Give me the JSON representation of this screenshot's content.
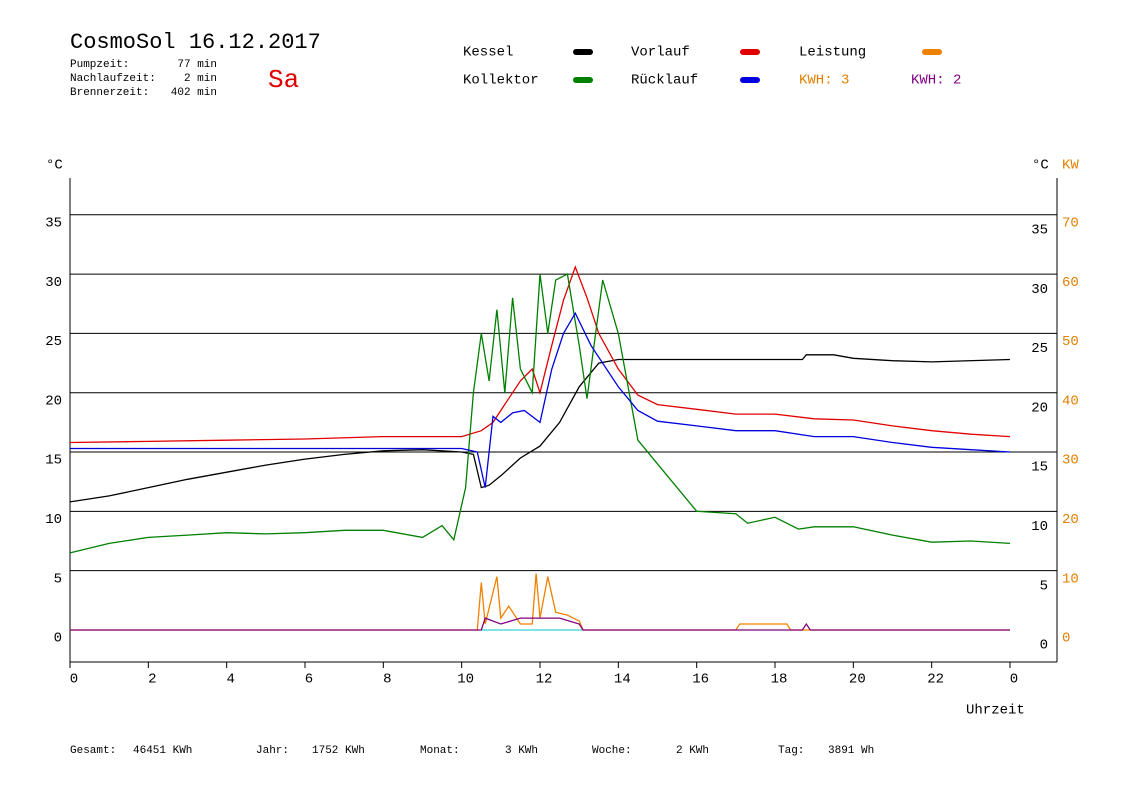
{
  "chart_data": {
    "type": "line",
    "title": "CosmoSol 16.12.2017",
    "day": "Sa",
    "info": [
      [
        "Pumpzeit:",
        "77 min"
      ],
      [
        "Nachlaufzeit:",
        "2 min"
      ],
      [
        "Brennerzeit:",
        "402 min"
      ]
    ],
    "y_label": "°C",
    "y2_label": "°C",
    "y2_unit": "KW",
    "x_label": "Uhrzeit",
    "kwh_labels": [
      {
        "text": "KWH: 3",
        "color": "#e08000"
      },
      {
        "text": "KWH: 2",
        "color": "#800080"
      }
    ],
    "footer": [
      [
        "Gesamt:",
        "46451 KWh"
      ],
      [
        "Jahr:",
        "1752 KWh"
      ],
      [
        "Monat:",
        "3 KWh"
      ],
      [
        "Woche:",
        "2 KWh"
      ],
      [
        "Tag:",
        "3891 Wh"
      ]
    ],
    "xlim": [
      0,
      25.2
    ],
    "xticks": [
      0,
      2,
      4,
      6,
      8,
      10,
      12,
      14,
      16,
      18,
      20,
      22,
      {
        "value": 24,
        "label": "0"
      }
    ],
    "ylim": [
      -2.7,
      38.1
    ],
    "yticks": [
      0,
      5,
      10,
      15,
      20,
      25,
      30,
      35
    ],
    "y2lim": [
      -5.4,
      76.2
    ],
    "y2ticks": [
      0,
      10,
      20,
      30,
      40,
      50,
      60,
      70
    ],
    "grid": true,
    "series": [
      {
        "name": "Kessel",
        "color": "#000000",
        "x": [
          0,
          1,
          2,
          3,
          4,
          5,
          6,
          7,
          8,
          9,
          10,
          10.3,
          10.5,
          10.7,
          11,
          11.5,
          12,
          12.5,
          13,
          13.5,
          14,
          16,
          18,
          18.7,
          18.8,
          19.5,
          20,
          21,
          22,
          24
        ],
        "values": [
          10.8,
          11.3,
          12.0,
          12.7,
          13.3,
          13.9,
          14.4,
          14.8,
          15.1,
          15.2,
          15.0,
          14.8,
          12.0,
          12.2,
          13.0,
          14.5,
          15.5,
          17.5,
          20.5,
          22.5,
          22.8,
          22.8,
          22.8,
          22.8,
          23.2,
          23.2,
          22.9,
          22.7,
          22.6,
          22.8
        ]
      },
      {
        "name": "Vorlauf",
        "color": "#e00000",
        "x": [
          0,
          2,
          4,
          6,
          8,
          10,
          10.5,
          10.8,
          11,
          11.5,
          11.8,
          12,
          12.3,
          12.6,
          12.9,
          13.2,
          13.5,
          14,
          14.5,
          15,
          16,
          17,
          18,
          19,
          20,
          21,
          22,
          23,
          24
        ],
        "values": [
          15.8,
          15.9,
          16.0,
          16.1,
          16.3,
          16.3,
          16.8,
          17.5,
          18.5,
          21,
          22,
          20,
          24,
          27.8,
          30.6,
          28,
          25,
          22,
          19.8,
          19,
          18.6,
          18.2,
          18.2,
          17.8,
          17.7,
          17.2,
          16.8,
          16.5,
          16.3
        ]
      },
      {
        "name": "Leistung",
        "color": "#f08000",
        "axis": "y2",
        "x": [
          0,
          10.4,
          10.5,
          10.6,
          10.9,
          11,
          11.2,
          11.5,
          11.8,
          11.9,
          12.0,
          12.2,
          12.4,
          12.7,
          13,
          13.1,
          17,
          17.1,
          18.3,
          18.4,
          24
        ],
        "values": [
          0,
          0,
          8,
          1,
          9,
          2,
          4,
          1,
          1,
          9.5,
          2,
          9,
          3,
          2.5,
          1.5,
          0,
          0,
          1,
          1,
          0,
          0
        ]
      },
      {
        "name": "Kollektor",
        "color": "#008000",
        "x": [
          0,
          1,
          2,
          3,
          4,
          5,
          6,
          7,
          8,
          9,
          9.5,
          9.8,
          10.1,
          10.3,
          10.5,
          10.7,
          10.9,
          11.1,
          11.3,
          11.5,
          11.8,
          12,
          12.2,
          12.4,
          12.7,
          13,
          13.2,
          13.6,
          14,
          14.5,
          15,
          16,
          17,
          17.3,
          18,
          18.6,
          19,
          20,
          21,
          22,
          23,
          24
        ],
        "values": [
          6.5,
          7.3,
          7.8,
          8.0,
          8.2,
          8.1,
          8.2,
          8.4,
          8.4,
          7.8,
          8.8,
          7.6,
          12,
          20,
          25,
          21,
          27,
          20,
          28,
          22,
          20,
          30,
          25,
          29.5,
          30,
          24,
          19.5,
          29.5,
          25,
          16,
          14,
          10,
          9.8,
          9,
          9.5,
          8.5,
          8.7,
          8.7,
          8.0,
          7.4,
          7.5,
          7.3
        ]
      },
      {
        "name": "Rücklauf",
        "color": "#0000e0",
        "x": [
          0,
          2,
          4,
          6,
          8,
          10,
          10.4,
          10.6,
          10.8,
          11,
          11.3,
          11.6,
          12,
          12.3,
          12.6,
          12.9,
          13.3,
          14,
          14.5,
          15,
          16,
          17,
          18,
          19,
          20,
          21,
          22,
          23,
          24
        ],
        "values": [
          15.3,
          15.3,
          15.3,
          15.3,
          15.3,
          15.3,
          15.0,
          12.0,
          18.0,
          17.5,
          18.3,
          18.5,
          17.5,
          22,
          25,
          26.7,
          24,
          20.5,
          18.5,
          17.6,
          17.2,
          16.8,
          16.8,
          16.3,
          16.3,
          15.8,
          15.4,
          15.2,
          15.0
        ]
      },
      {
        "color": "#800080",
        "axis": "y2",
        "x": [
          0,
          10.5,
          10.6,
          11,
          11.5,
          12,
          12.5,
          13,
          13.1,
          18.7,
          18.8,
          18.9,
          24
        ],
        "values": [
          0,
          0,
          2,
          1,
          2,
          2,
          2,
          1,
          0,
          0,
          1,
          0,
          0
        ]
      }
    ]
  }
}
